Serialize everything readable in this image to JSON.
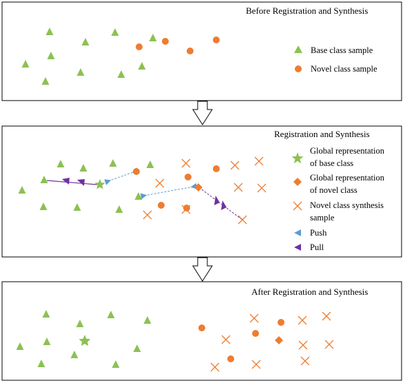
{
  "panels": {
    "before": {
      "title": "Before Registration and Synthesis",
      "legend": {
        "base": "Base class sample",
        "novel": "Novel class sample"
      }
    },
    "registration": {
      "title": "Registration and Synthesis",
      "legend": {
        "global_base": [
          "Global representation",
          "of base class"
        ],
        "global_novel": [
          "Global representation",
          "of novel class"
        ],
        "synthesis": [
          "Novel class synthesis",
          "sample"
        ],
        "push": "Push",
        "pull": "Pull"
      }
    },
    "after": {
      "title": "After Registration and Synthesis"
    }
  },
  "colors": {
    "base": "#8cc152",
    "novel": "#ed7d31",
    "push": "#5b9bd5",
    "pull": "#7030a0",
    "border": "#000000"
  },
  "icons": [
    "triangle-marker-icon",
    "circle-marker-icon",
    "star-marker-icon",
    "diamond-marker-icon",
    "cross-marker-icon",
    "push-arrow-icon",
    "pull-arrow-icon",
    "down-arrow-icon"
  ]
}
